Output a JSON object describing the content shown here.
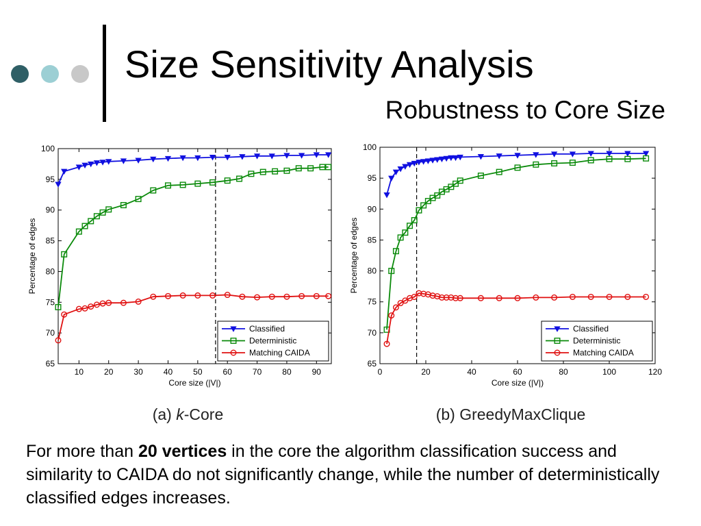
{
  "slide": {
    "title": "Size Sensitivity Analysis",
    "subtitle": "Robustness to Core Size",
    "dot_colors": [
      "#2f5f66",
      "#9ccfd4",
      "#c8c8c8"
    ],
    "caption": {
      "before": "For more than ",
      "bold": "20 vertices",
      "after": " in the core the algorithm classification success and similarity to CAIDA do not significantly change, while the number of deterministically classified edges increases."
    }
  },
  "chart_data": [
    {
      "type": "line",
      "title": "(a) k-Core",
      "caption_parts": [
        "(a) ",
        "k",
        "-Core"
      ],
      "xlabel": "Core size (|V|)",
      "ylabel": "Percentage of edges",
      "xlim": [
        3,
        95
      ],
      "ylim": [
        65,
        100
      ],
      "xticks": [
        10,
        20,
        30,
        40,
        50,
        60,
        70,
        80,
        90
      ],
      "yticks": [
        65,
        70,
        75,
        80,
        85,
        90,
        95,
        100
      ],
      "vline": 56,
      "legend_position": "bottom-right",
      "series": [
        {
          "name": "Classified",
          "color": "#1010e0",
          "marker": "triangle-down",
          "x": [
            3,
            5,
            10,
            12,
            14,
            16,
            18,
            20,
            25,
            30,
            35,
            40,
            45,
            50,
            55,
            60,
            65,
            70,
            75,
            80,
            85,
            90,
            94
          ],
          "y": [
            94.2,
            96.3,
            97.0,
            97.3,
            97.5,
            97.7,
            97.8,
            97.9,
            98.0,
            98.1,
            98.3,
            98.4,
            98.5,
            98.5,
            98.6,
            98.6,
            98.7,
            98.8,
            98.8,
            98.9,
            98.9,
            99.0,
            99.0
          ]
        },
        {
          "name": "Deterministic",
          "color": "#0a8a0a",
          "marker": "square",
          "x": [
            3,
            5,
            10,
            12,
            14,
            16,
            18,
            20,
            25,
            30,
            35,
            40,
            45,
            50,
            55,
            60,
            64,
            68,
            72,
            76,
            80,
            84,
            88,
            92,
            94
          ],
          "y": [
            74.2,
            82.8,
            86.5,
            87.4,
            88.2,
            89.0,
            89.6,
            90.1,
            90.8,
            91.8,
            93.2,
            94.0,
            94.1,
            94.3,
            94.5,
            94.8,
            95.1,
            95.9,
            96.2,
            96.3,
            96.4,
            96.8,
            96.8,
            97.0,
            97.0
          ]
        },
        {
          "name": "Matching CAIDA",
          "color": "#e01010",
          "marker": "circle",
          "x": [
            3,
            5,
            10,
            12,
            14,
            16,
            18,
            20,
            25,
            30,
            35,
            40,
            45,
            50,
            55,
            60,
            65,
            70,
            75,
            80,
            85,
            90,
            94
          ],
          "y": [
            68.8,
            73.0,
            73.9,
            74.0,
            74.3,
            74.6,
            74.8,
            74.9,
            74.9,
            75.1,
            75.9,
            76.0,
            76.1,
            76.1,
            76.1,
            76.2,
            75.9,
            75.8,
            75.9,
            75.9,
            76.0,
            76.0,
            76.0
          ]
        }
      ]
    },
    {
      "type": "line",
      "title": "(b) GreedyMaxClique",
      "caption_parts": [
        "(b) ",
        "",
        "GreedyMaxClique"
      ],
      "xlabel": "Core size (|V|)",
      "ylabel": "Percentage of edges",
      "xlim": [
        0,
        120
      ],
      "ylim": [
        65,
        100
      ],
      "xticks": [
        0,
        20,
        40,
        60,
        80,
        100,
        120
      ],
      "yticks": [
        65,
        70,
        75,
        80,
        85,
        90,
        95,
        100
      ],
      "vline": 16,
      "legend_position": "bottom-right",
      "series": [
        {
          "name": "Classified",
          "color": "#1010e0",
          "marker": "triangle-down",
          "x": [
            3,
            5,
            7,
            9,
            11,
            13,
            15,
            17,
            19,
            21,
            23,
            25,
            27,
            29,
            31,
            33,
            35,
            44,
            52,
            60,
            68,
            76,
            84,
            92,
            100,
            108,
            116
          ],
          "y": [
            92.3,
            95.0,
            96.0,
            96.5,
            96.9,
            97.2,
            97.4,
            97.6,
            97.7,
            97.8,
            97.9,
            98.0,
            98.1,
            98.2,
            98.3,
            98.3,
            98.4,
            98.5,
            98.6,
            98.7,
            98.8,
            98.9,
            98.9,
            99.0,
            99.0,
            99.0,
            99.0
          ]
        },
        {
          "name": "Deterministic",
          "color": "#0a8a0a",
          "marker": "square",
          "x": [
            3,
            5,
            7,
            9,
            11,
            13,
            15,
            17,
            19,
            21,
            23,
            25,
            27,
            29,
            31,
            33,
            35,
            44,
            52,
            60,
            68,
            76,
            84,
            92,
            100,
            108,
            116
          ],
          "y": [
            70.5,
            80.0,
            83.2,
            85.4,
            86.2,
            87.3,
            88.2,
            89.8,
            90.6,
            91.3,
            91.8,
            92.2,
            92.8,
            93.2,
            93.6,
            94.1,
            94.6,
            95.4,
            96.0,
            96.7,
            97.2,
            97.4,
            97.5,
            97.9,
            98.1,
            98.1,
            98.2
          ]
        },
        {
          "name": "Matching CAIDA",
          "color": "#e01010",
          "marker": "circle",
          "x": [
            3,
            5,
            7,
            9,
            11,
            13,
            15,
            17,
            19,
            21,
            23,
            25,
            27,
            29,
            31,
            33,
            35,
            44,
            52,
            60,
            68,
            76,
            84,
            92,
            100,
            108,
            116
          ],
          "y": [
            68.2,
            72.8,
            74.1,
            74.8,
            75.2,
            75.6,
            75.8,
            76.4,
            76.3,
            76.2,
            76.0,
            75.9,
            75.7,
            75.7,
            75.7,
            75.6,
            75.6,
            75.6,
            75.6,
            75.6,
            75.7,
            75.7,
            75.8,
            75.8,
            75.8,
            75.8,
            75.8
          ]
        }
      ]
    }
  ]
}
